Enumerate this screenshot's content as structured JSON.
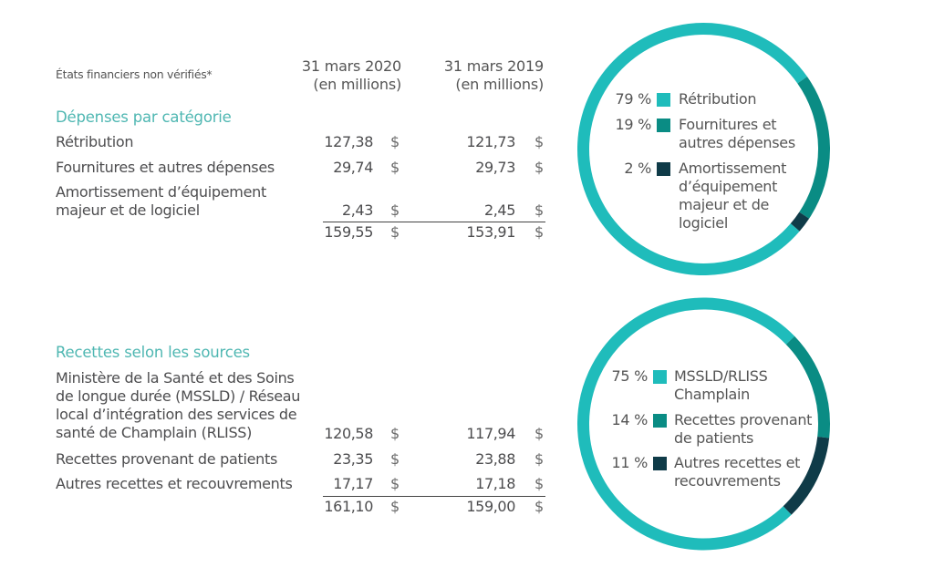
{
  "header": {
    "note": "États financiers non vérifiés*",
    "col2020_line1": "31 mars 2020",
    "col2020_line2": "(en millions)",
    "col2019_line1": "31 mars 2019",
    "col2019_line2": "(en millions)",
    "currency": "$"
  },
  "expenses": {
    "title": "Dépenses par catégorie",
    "rows": [
      {
        "label": "Rétribution",
        "v2020": "127,38",
        "v2019": "121,73"
      },
      {
        "label": "Fournitures et autres dépenses",
        "v2020": "29,74",
        "v2019": "29,73"
      },
      {
        "label_line1": "Amortissement d’équipement",
        "label_line2": "majeur et de logiciel",
        "v2020": "2,43",
        "v2019": "2,45"
      }
    ],
    "total": {
      "v2020": "159,55",
      "v2019": "153,91"
    }
  },
  "revenues": {
    "title": "Recettes selon les sources",
    "rows": [
      {
        "label_line1": "Ministère de la Santé et des Soins",
        "label_line2": "de longue durée (MSSLD) / Réseau",
        "label_line3": "local d’intégration des services de",
        "label_line4": "santé de Champlain (RLISS)",
        "v2020": "120,58",
        "v2019": "117,94"
      },
      {
        "label": "Recettes provenant de patients",
        "v2020": "23,35",
        "v2019": "23,88"
      },
      {
        "label": "Autres recettes et recouvrements",
        "v2020": "17,17",
        "v2019": "17,18"
      }
    ],
    "total": {
      "v2020": "161,10",
      "v2019": "159,00"
    }
  },
  "colors": {
    "primary": "#1fbcbb",
    "secondary": "#0a8c84",
    "tertiary": "#0f3b48",
    "section_title": "#4fb7b2"
  },
  "chart_data": [
    {
      "type": "pie",
      "title": "Dépenses par catégorie",
      "categories": [
        "Rétribution",
        "Fournitures et autres dépenses",
        "Amortissement d’équipement majeur et de logiciel"
      ],
      "values": [
        79,
        19,
        2
      ],
      "unit": "%",
      "legend": [
        {
          "pct": "79 %",
          "line1": "Rétribution"
        },
        {
          "pct": "19 %",
          "line1": "Fournitures et",
          "line2": "autres dépenses"
        },
        {
          "pct": "2 %",
          "line1": "Amortissement",
          "line2": "d’équipement",
          "line3": "majeur et de",
          "line4": "logiciel"
        }
      ],
      "legend_position": "center",
      "style": "donut"
    },
    {
      "type": "pie",
      "title": "Recettes selon les sources",
      "categories": [
        "MSSLD/RLISS Champlain",
        "Recettes provenant de patients",
        "Autres recettes et recouvrements"
      ],
      "values": [
        75,
        14,
        11
      ],
      "unit": "%",
      "legend": [
        {
          "pct": "75 %",
          "line1": "MSSLD/RLISS",
          "line2": "Champlain"
        },
        {
          "pct": "14 %",
          "line1": "Recettes provenant",
          "line2": "de patients"
        },
        {
          "pct": "11 %",
          "line1": "Autres recettes et",
          "line2": "recouvrements"
        }
      ],
      "legend_position": "center",
      "style": "donut"
    }
  ]
}
